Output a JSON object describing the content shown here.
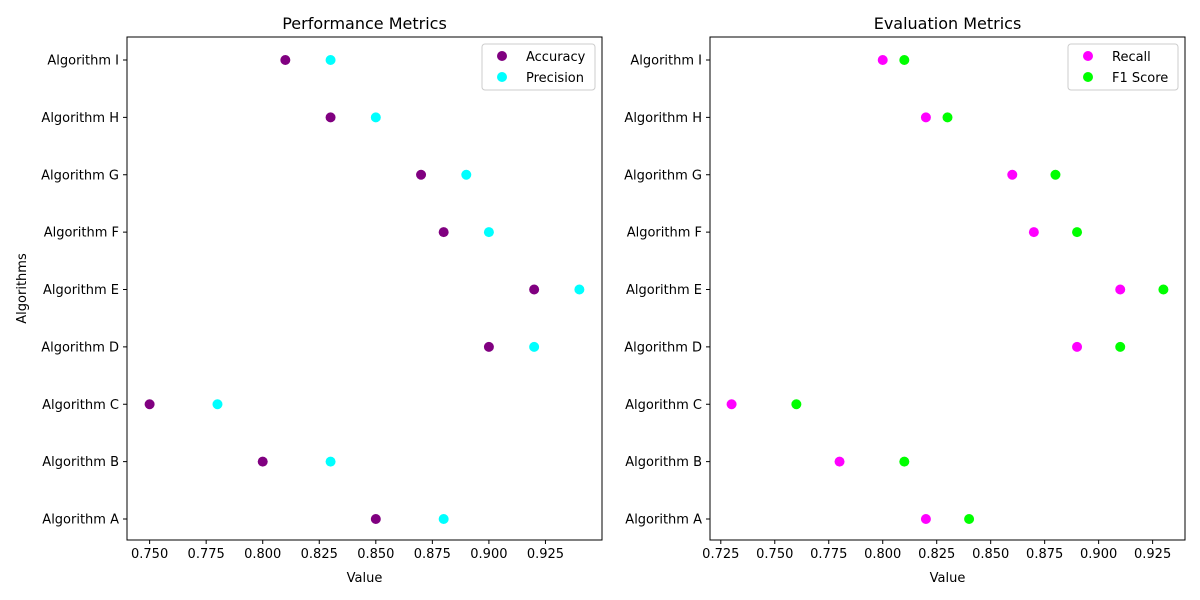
{
  "chart_data": [
    {
      "type": "scatter",
      "title": "Performance Metrics",
      "xlabel": "Value",
      "ylabel": "Algorithms",
      "categories": [
        "Algorithm A",
        "Algorithm B",
        "Algorithm C",
        "Algorithm D",
        "Algorithm E",
        "Algorithm F",
        "Algorithm G",
        "Algorithm H",
        "Algorithm I"
      ],
      "xlim": [
        0.74,
        0.95
      ],
      "xticks": [
        "0.750",
        "0.775",
        "0.800",
        "0.825",
        "0.850",
        "0.875",
        "0.900",
        "0.925"
      ],
      "legend_position": "top-right",
      "grid": false,
      "series": [
        {
          "name": "Accuracy",
          "color": "#800080",
          "values": [
            0.85,
            0.8,
            0.75,
            0.9,
            0.92,
            0.88,
            0.87,
            0.83,
            0.81
          ]
        },
        {
          "name": "Precision",
          "color": "#00ffff",
          "values": [
            0.88,
            0.83,
            0.78,
            0.92,
            0.94,
            0.9,
            0.89,
            0.85,
            0.83
          ]
        }
      ]
    },
    {
      "type": "scatter",
      "title": "Evaluation Metrics",
      "xlabel": "Value",
      "ylabel": "",
      "categories": [
        "Algorithm A",
        "Algorithm B",
        "Algorithm C",
        "Algorithm D",
        "Algorithm E",
        "Algorithm F",
        "Algorithm G",
        "Algorithm H",
        "Algorithm I"
      ],
      "xlim": [
        0.72,
        0.94
      ],
      "xticks": [
        "0.725",
        "0.750",
        "0.775",
        "0.800",
        "0.825",
        "0.850",
        "0.875",
        "0.900",
        "0.925"
      ],
      "legend_position": "top-right",
      "grid": false,
      "series": [
        {
          "name": "Recall",
          "color": "#ff00ff",
          "values": [
            0.82,
            0.78,
            0.73,
            0.89,
            0.91,
            0.87,
            0.86,
            0.82,
            0.8
          ]
        },
        {
          "name": "F1 Score",
          "color": "#00ff00",
          "values": [
            0.84,
            0.81,
            0.76,
            0.91,
            0.93,
            0.89,
            0.88,
            0.83,
            0.81
          ]
        }
      ]
    }
  ]
}
